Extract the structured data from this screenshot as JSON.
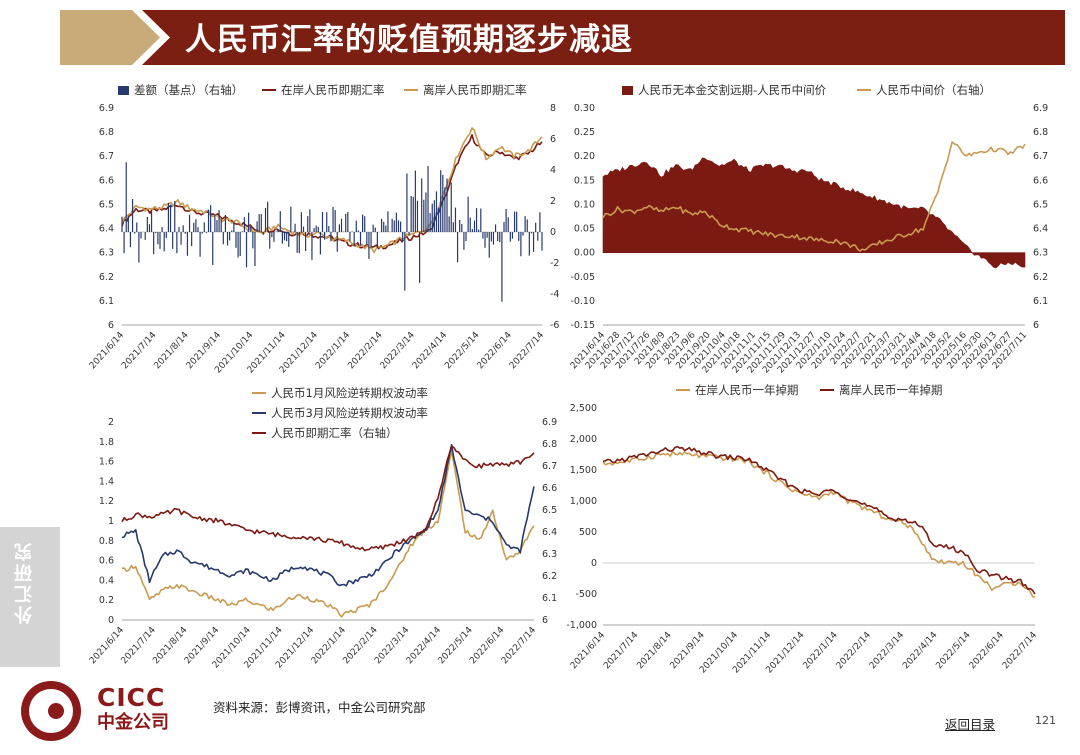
{
  "page": {
    "title": "人民币汇率的贬值预期逐步减退",
    "sidebar_label": "外汇研究",
    "logo_en": "CICC",
    "logo_cn": "中金公司",
    "source": "资料来源：彭博资讯，中金公司研究部",
    "back_link": "返回目录",
    "page_number": "121"
  },
  "colors": {
    "header_dark": "#7a1f12",
    "header_gold": "#c8ab79",
    "maroon": "#7b1a12",
    "gold": "#c99a4f",
    "navy": "#283a6b",
    "logo_red": "#8b1a1a"
  },
  "chart_data": [
    {
      "id": "c1",
      "type": "line+bar",
      "legend": [
        "差额（基点）（右轴）",
        "在岸人民币即期汇率",
        "离岸人民币即期汇率"
      ],
      "x_labels": [
        "2021/6/14",
        "2021/7/14",
        "2021/8/14",
        "2021/9/14",
        "2021/10/14",
        "2021/11/14",
        "2021/12/14",
        "2022/1/14",
        "2022/2/14",
        "2022/3/14",
        "2022/4/14",
        "2022/5/14",
        "2022/6/14",
        "2022/7/14"
      ],
      "left_axis": {
        "min": 6,
        "max": 6.9,
        "ticks": [
          "6.9",
          "6.8",
          "6.7",
          "6.6",
          "6.5",
          "6.4",
          "6.3",
          "6.2",
          "6.1",
          "6"
        ]
      },
      "right_axis": {
        "min": -6,
        "max": 8,
        "ticks": [
          "8",
          "6",
          "4",
          "2",
          "0",
          "-2",
          "-4",
          "-6"
        ]
      },
      "series": [
        {
          "name": "在岸人民币即期汇率",
          "axis": "left",
          "color": "maroon",
          "values": [
            6.42,
            6.48,
            6.47,
            6.48,
            6.5,
            6.47,
            6.46,
            6.45,
            6.43,
            6.41,
            6.39,
            6.4,
            6.38,
            6.38,
            6.37,
            6.36,
            6.34,
            6.33,
            6.32,
            6.33,
            6.35,
            6.37,
            6.39,
            6.52,
            6.68,
            6.78,
            6.7,
            6.72,
            6.69,
            6.71,
            6.76
          ]
        },
        {
          "name": "离岸人民币即期汇率",
          "axis": "left",
          "color": "gold",
          "values": [
            6.43,
            6.49,
            6.48,
            6.49,
            6.51,
            6.48,
            6.47,
            6.44,
            6.43,
            6.4,
            6.38,
            6.41,
            6.39,
            6.37,
            6.38,
            6.36,
            6.35,
            6.33,
            6.31,
            6.33,
            6.36,
            6.38,
            6.41,
            6.55,
            6.71,
            6.82,
            6.69,
            6.74,
            6.7,
            6.72,
            6.78
          ]
        },
        {
          "name": "差额（基点）（右轴）",
          "axis": "right",
          "color": "navy",
          "bar_count": 200,
          "range": [
            -5,
            5
          ]
        }
      ]
    },
    {
      "id": "c2",
      "type": "area+line",
      "legend": [
        "人民币无本金交割远期-人民币中间价",
        "人民币中间价（右轴）"
      ],
      "x_labels": [
        "2021/6/14",
        "2021/6/28",
        "2021/7/12",
        "2021/7/26",
        "2021/8/9",
        "2021/8/23",
        "2021/9/6",
        "2021/9/20",
        "2021/10/4",
        "2021/10/18",
        "2021/11/1",
        "2021/11/15",
        "2021/11/29",
        "2021/12/13",
        "2021/12/27",
        "2022/1/10",
        "2022/1/24",
        "2022/2/7",
        "2022/2/21",
        "2022/3/7",
        "2022/3/21",
        "2022/4/4",
        "2022/4/18",
        "2022/5/2",
        "2022/5/16",
        "2022/5/30",
        "2022/6/13",
        "2022/6/27",
        "2022/7/11"
      ],
      "left_axis": {
        "min": -0.15,
        "max": 0.3,
        "ticks": [
          "0.30",
          "0.25",
          "0.20",
          "0.15",
          "0.10",
          "0.05",
          "0.00",
          "-0.05",
          "-0.10",
          "-0.15"
        ]
      },
      "right_axis": {
        "min": 6,
        "max": 6.9,
        "ticks": [
          "6.9",
          "6.8",
          "6.7",
          "6.6",
          "6.5",
          "6.4",
          "6.3",
          "6.2",
          "6.1",
          "6"
        ]
      },
      "series": [
        {
          "name": "人民币无本金交割远期-人民币中间价",
          "axis": "left",
          "color": "maroon",
          "values": [
            0.16,
            0.17,
            0.18,
            0.19,
            0.16,
            0.18,
            0.17,
            0.2,
            0.18,
            0.19,
            0.17,
            0.18,
            0.18,
            0.17,
            0.17,
            0.15,
            0.14,
            0.13,
            0.12,
            0.11,
            0.1,
            0.09,
            0.09,
            0.07,
            0.04,
            0.01,
            -0.01,
            -0.03,
            -0.02,
            -0.03
          ]
        },
        {
          "name": "人民币中间价（右轴）",
          "axis": "right",
          "color": "gold",
          "values": [
            6.45,
            6.48,
            6.47,
            6.49,
            6.47,
            6.49,
            6.46,
            6.47,
            6.42,
            6.4,
            6.39,
            6.38,
            6.37,
            6.37,
            6.36,
            6.35,
            6.35,
            6.33,
            6.31,
            6.34,
            6.36,
            6.38,
            6.4,
            6.55,
            6.76,
            6.7,
            6.72,
            6.73,
            6.71,
            6.75
          ]
        }
      ]
    },
    {
      "id": "c3",
      "type": "line",
      "legend": [
        "人民币1月风险逆转期权波动率",
        "人民币3月风险逆转期权波动率",
        "人民币即期汇率（右轴）"
      ],
      "x_labels": [
        "2021/6/14",
        "2021/7/14",
        "2021/8/14",
        "2021/9/14",
        "2021/10/14",
        "2021/11/14",
        "2021/12/14",
        "2022/1/14",
        "2022/2/14",
        "2022/3/14",
        "2022/4/14",
        "2022/5/14",
        "2022/6/14",
        "2022/7/14"
      ],
      "left_axis": {
        "min": 0,
        "max": 2,
        "ticks": [
          "2",
          "1.8",
          "1.6",
          "1.4",
          "1.2",
          "1",
          "0.8",
          "0.6",
          "0.4",
          "0.2",
          "0"
        ]
      },
      "right_axis": {
        "min": 6,
        "max": 6.9,
        "ticks": [
          "6.9",
          "6.8",
          "6.7",
          "6.6",
          "6.5",
          "6.4",
          "6.3",
          "6.2",
          "6.1",
          "6"
        ]
      },
      "series": [
        {
          "name": "人民币1月风险逆转期权波动率",
          "axis": "left",
          "color": "gold",
          "values": [
            0.5,
            0.55,
            0.2,
            0.3,
            0.35,
            0.3,
            0.25,
            0.2,
            0.15,
            0.2,
            0.15,
            0.1,
            0.2,
            0.25,
            0.2,
            0.15,
            0.05,
            0.1,
            0.15,
            0.3,
            0.5,
            0.75,
            0.9,
            1.0,
            1.7,
            0.9,
            0.8,
            1.1,
            0.6,
            0.7,
            0.95
          ]
        },
        {
          "name": "人民币3月风险逆转期权波动率",
          "axis": "left",
          "color": "navy",
          "values": [
            0.85,
            0.9,
            0.4,
            0.65,
            0.7,
            0.6,
            0.55,
            0.5,
            0.45,
            0.5,
            0.45,
            0.4,
            0.5,
            0.55,
            0.5,
            0.45,
            0.35,
            0.4,
            0.45,
            0.55,
            0.7,
            0.8,
            0.9,
            1.1,
            1.75,
            1.1,
            1.05,
            1.0,
            0.75,
            0.7,
            1.35
          ]
        },
        {
          "name": "人民币即期汇率（右轴）",
          "axis": "right",
          "color": "maroon",
          "values": [
            6.45,
            6.48,
            6.47,
            6.48,
            6.5,
            6.47,
            6.46,
            6.45,
            6.43,
            6.41,
            6.4,
            6.39,
            6.38,
            6.38,
            6.37,
            6.36,
            6.35,
            6.33,
            6.32,
            6.33,
            6.35,
            6.37,
            6.4,
            6.55,
            6.8,
            6.72,
            6.7,
            6.71,
            6.7,
            6.72,
            6.76
          ]
        }
      ]
    },
    {
      "id": "c4",
      "type": "line",
      "legend": [
        "在岸人民币一年掉期",
        "离岸人民币一年掉期"
      ],
      "x_labels": [
        "2021/6/14",
        "2021/7/14",
        "2021/8/14",
        "2021/9/14",
        "2021/10/14",
        "2021/11/14",
        "2021/12/14",
        "2022/1/14",
        "2022/2/14",
        "2022/3/14",
        "2022/4/14",
        "2022/5/14",
        "2022/6/14",
        "2022/7/14"
      ],
      "left_axis": {
        "min": -1000,
        "max": 2500,
        "ticks": [
          "2,500",
          "2,000",
          "1,500",
          "1,000",
          "500",
          "0",
          "-500",
          "-1,000"
        ]
      },
      "series": [
        {
          "name": "在岸人民币一年掉期",
          "axis": "left",
          "color": "gold",
          "values": [
            1600,
            1620,
            1650,
            1700,
            1750,
            1760,
            1750,
            1720,
            1700,
            1680,
            1650,
            1500,
            1350,
            1200,
            1100,
            1050,
            1150,
            1000,
            900,
            800,
            700,
            650,
            400,
            30,
            20,
            0,
            -200,
            -400,
            -350,
            -300,
            -550
          ]
        },
        {
          "name": "离岸人民币一年掉期",
          "axis": "left",
          "color": "maroon",
          "values": [
            1620,
            1650,
            1700,
            1750,
            1800,
            1850,
            1820,
            1780,
            1720,
            1700,
            1680,
            1550,
            1400,
            1250,
            1150,
            1100,
            1200,
            1050,
            950,
            850,
            720,
            700,
            600,
            300,
            250,
            180,
            -100,
            -200,
            -250,
            -300,
            -500
          ]
        }
      ]
    }
  ]
}
